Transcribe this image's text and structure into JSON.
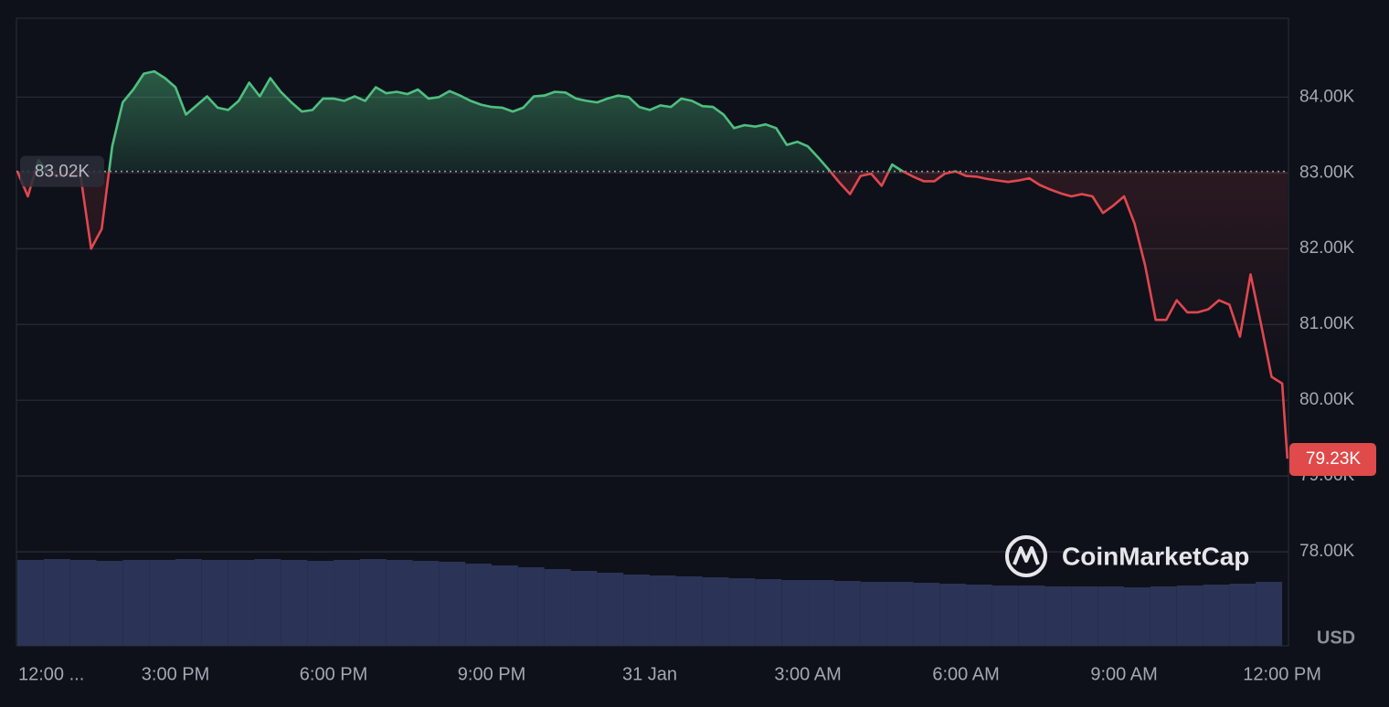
{
  "chart_data": {
    "type": "line",
    "x": [
      12,
      12.2,
      12.4,
      12.6,
      12.8,
      13,
      13.2,
      13.4,
      13.6,
      13.8,
      14,
      14.2,
      14.4,
      14.6,
      14.8,
      15,
      15.2,
      15.4,
      15.6,
      15.8,
      16,
      16.2,
      16.4,
      16.6,
      16.8,
      17,
      17.2,
      17.4,
      17.6,
      17.8,
      18,
      18.2,
      18.4,
      18.6,
      18.8,
      19,
      19.2,
      19.4,
      19.6,
      19.8,
      20,
      20.2,
      20.4,
      20.6,
      20.8,
      21,
      21.2,
      21.4,
      21.6,
      21.8,
      22,
      22.2,
      22.4,
      22.6,
      22.8,
      23,
      23.2,
      23.4,
      23.6,
      23.8,
      24,
      24.2,
      24.4,
      24.6,
      24.8,
      25,
      25.2,
      25.4,
      25.6,
      25.8,
      26,
      26.2,
      26.4,
      26.6,
      26.8,
      27,
      27.2,
      27.4,
      27.6,
      27.8,
      28,
      28.2,
      28.4,
      28.6,
      28.8,
      29,
      29.2,
      29.4,
      29.6,
      29.8,
      30,
      30.2,
      30.4,
      30.6,
      30.8,
      31,
      31.2,
      31.4,
      31.6,
      31.8,
      32,
      32.2,
      32.4,
      32.6,
      32.8,
      33,
      33.2,
      33.4,
      33.6,
      33.8,
      34,
      34.2,
      34.4,
      34.6,
      34.8,
      35,
      35.2,
      35.4,
      35.6,
      35.8,
      36,
      36.1
    ],
    "values": [
      83020,
      82690,
      83170,
      82990,
      82960,
      82990,
      82960,
      82000,
      82260,
      83350,
      83930,
      84100,
      84310,
      84340,
      84250,
      84130,
      83770,
      83890,
      84010,
      83860,
      83830,
      83950,
      84190,
      84010,
      84250,
      84070,
      83930,
      83810,
      83830,
      83980,
      83980,
      83950,
      84010,
      83950,
      84130,
      84050,
      84070,
      84040,
      84100,
      83980,
      84000,
      84080,
      84020,
      83950,
      83900,
      83870,
      83860,
      83810,
      83860,
      84010,
      84020,
      84070,
      84060,
      83980,
      83950,
      83930,
      83980,
      84020,
      84000,
      83870,
      83830,
      83890,
      83870,
      83980,
      83950,
      83880,
      83870,
      83770,
      83590,
      83630,
      83610,
      83640,
      83590,
      83370,
      83410,
      83350,
      83200,
      83040,
      82870,
      82720,
      82960,
      82990,
      82830,
      83110,
      83020,
      82950,
      82890,
      82890,
      82990,
      83020,
      82960,
      82950,
      82920,
      82900,
      82880,
      82900,
      82930,
      82840,
      82780,
      82730,
      82690,
      82720,
      82690,
      82470,
      82570,
      82690,
      82330,
      81780,
      81060,
      81060,
      81320,
      81160,
      81160,
      81200,
      81320,
      81260,
      80840,
      81660,
      81000,
      80310,
      80220,
      79230
    ],
    "color_up": "#4fbf80",
    "color_down": "#e0474e",
    "xlim": [
      12,
      36.12
    ],
    "xticks": [
      {
        "value": 12,
        "label": "12:00 ..."
      },
      {
        "value": 15,
        "label": "3:00 PM"
      },
      {
        "value": 18,
        "label": "6:00 PM"
      },
      {
        "value": 21,
        "label": "9:00 PM"
      },
      {
        "value": 24,
        "label": "31 Jan"
      },
      {
        "value": 27,
        "label": "3:00 AM"
      },
      {
        "value": 30,
        "label": "6:00 AM"
      },
      {
        "value": 33,
        "label": "9:00 AM"
      },
      {
        "value": 36,
        "label": "12:00 PM"
      }
    ],
    "ylim": [
      76760,
      85040
    ],
    "yticks": [
      {
        "value": 78000,
        "label": "78.00K"
      },
      {
        "value": 79000,
        "label": "79.00K"
      },
      {
        "value": 80000,
        "label": "80.00K"
      },
      {
        "value": 81000,
        "label": "81.00K"
      },
      {
        "value": 82000,
        "label": "82.00K"
      },
      {
        "value": 83000,
        "label": "83.00K"
      },
      {
        "value": 84000,
        "label": "84.00K"
      }
    ],
    "grid": true,
    "baseline": {
      "value": 83020,
      "label": "83.02K"
    },
    "last_price": {
      "value": 79230,
      "label": "79.23K"
    },
    "currency": "USD",
    "watermark": "CoinMarketCap",
    "volume": {
      "x": [
        12,
        12.5,
        13,
        13.5,
        14,
        14.5,
        15,
        15.5,
        16,
        16.5,
        17,
        17.5,
        18,
        18.5,
        19,
        19.5,
        20,
        20.5,
        21,
        21.5,
        22,
        22.5,
        23,
        23.5,
        24,
        24.5,
        25,
        25.5,
        26,
        26.5,
        27,
        27.5,
        28,
        28.5,
        29,
        29.5,
        30,
        30.5,
        31,
        31.5,
        32,
        32.5,
        33,
        33.5,
        34,
        34.5,
        35,
        35.5
      ],
      "values": [
        94,
        95,
        94,
        93,
        94,
        94,
        95,
        94,
        94,
        95,
        94,
        93,
        94,
        95,
        94,
        93,
        92,
        90,
        88,
        86,
        84,
        82,
        80,
        78,
        77,
        76,
        75,
        74,
        73,
        72,
        72,
        71,
        70,
        70,
        69,
        68,
        67,
        66,
        66,
        65,
        65,
        65,
        64,
        65,
        66,
        67,
        68,
        70
      ],
      "vlim": [
        0,
        100
      ],
      "color": "#2b3356"
    }
  }
}
